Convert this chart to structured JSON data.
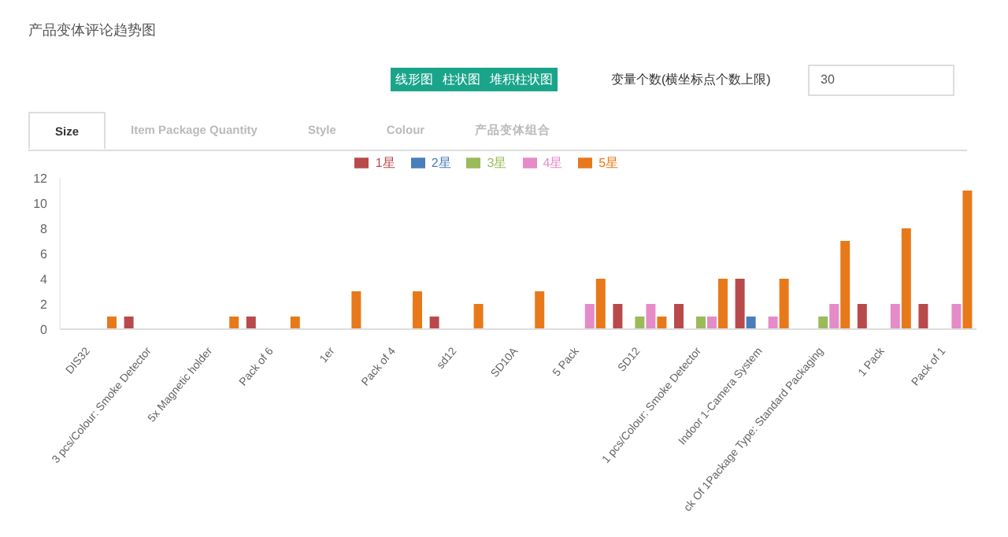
{
  "chart_data": {
    "type": "bar",
    "title": "产品变体评论趋势图",
    "categories": [
      "DIS32",
      "3 pcs/Colour: Smoke Detector",
      "5x Magnetic holder",
      "Pack of 6",
      "1er",
      "Pack of 4",
      "sd12",
      "SD10A",
      "5 Pack",
      "SD12",
      "1 pcs/Colour: Smoke Detector",
      "Indoor 1-Camera System",
      "ck Of 1Package Type: Standard Packaging",
      "1 Pack",
      "Pack of 1"
    ],
    "series": [
      {
        "name": "1星",
        "color": "#b94a4c",
        "values": [
          0,
          1,
          0,
          1,
          0,
          0,
          1,
          0,
          0,
          2,
          2,
          4,
          0,
          2,
          2
        ]
      },
      {
        "name": "2星",
        "color": "#4a7ebb",
        "values": [
          0,
          0,
          0,
          0,
          0,
          0,
          0,
          0,
          0,
          0,
          0,
          1,
          0,
          0,
          0
        ]
      },
      {
        "name": "3星",
        "color": "#9bbb59",
        "values": [
          0,
          0,
          0,
          0,
          0,
          0,
          0,
          0,
          0,
          1,
          1,
          0,
          1,
          0,
          0
        ]
      },
      {
        "name": "4星",
        "color": "#e58bc8",
        "values": [
          0,
          0,
          0,
          0,
          0,
          0,
          0,
          0,
          2,
          2,
          1,
          1,
          2,
          2,
          2
        ]
      },
      {
        "name": "5星",
        "color": "#e8791a",
        "values": [
          1,
          0,
          1,
          1,
          3,
          3,
          2,
          3,
          4,
          1,
          4,
          4,
          7,
          8,
          11
        ]
      }
    ],
    "ylim": [
      0,
      12
    ],
    "yticks": [
      0,
      2,
      4,
      6,
      8,
      10,
      12
    ],
    "grid": false,
    "legend": "top",
    "annotations": [
      "线形图",
      "柱状图",
      "堆积柱状图",
      "变量个数(横坐标点个数上限)",
      "30",
      "Size",
      "Item Package Quantity",
      "Style",
      "Colour",
      "产品变体组合"
    ]
  }
}
